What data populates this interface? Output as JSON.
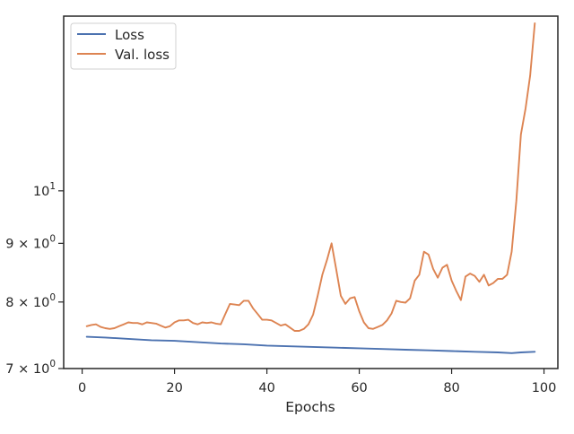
{
  "chart_data": {
    "type": "line",
    "title": "",
    "xlabel": "Epochs",
    "ylabel": "",
    "xlim": [
      -4,
      103
    ],
    "ylim": [
      7,
      14.2
    ],
    "y_scale": "log",
    "grid": false,
    "legend": "top-left",
    "x_ticks": [
      0,
      20,
      40,
      60,
      80,
      100
    ],
    "x_tick_labels": [
      "0",
      "20",
      "40",
      "60",
      "80",
      "100"
    ],
    "y_ticks": [
      {
        "value": 7,
        "base": "7 × 10",
        "exp": "0"
      },
      {
        "value": 8,
        "base": "8 × 10",
        "exp": "0"
      },
      {
        "value": 9,
        "base": "9 × 10",
        "exp": "0"
      },
      {
        "value": 10,
        "base": "10",
        "exp": "1"
      }
    ],
    "series": [
      {
        "name": "Loss",
        "color": "#4c72b0",
        "x": [
          1,
          5,
          10,
          15,
          20,
          25,
          30,
          35,
          40,
          45,
          50,
          55,
          60,
          65,
          70,
          75,
          80,
          85,
          90,
          93,
          95,
          98
        ],
        "y": [
          7.46,
          7.45,
          7.43,
          7.41,
          7.4,
          7.38,
          7.36,
          7.35,
          7.33,
          7.32,
          7.31,
          7.3,
          7.29,
          7.28,
          7.27,
          7.26,
          7.25,
          7.24,
          7.23,
          7.22,
          7.23,
          7.24
        ]
      },
      {
        "name": "Val. loss",
        "color": "#dd8452",
        "x": [
          1,
          2,
          3,
          4,
          5,
          6,
          7,
          8,
          9,
          10,
          11,
          12,
          13,
          14,
          15,
          16,
          17,
          18,
          19,
          20,
          21,
          22,
          23,
          24,
          25,
          26,
          27,
          28,
          29,
          30,
          31,
          32,
          33,
          34,
          35,
          36,
          37,
          38,
          39,
          40,
          41,
          42,
          43,
          44,
          45,
          46,
          47,
          48,
          49,
          50,
          51,
          52,
          53,
          54,
          55,
          56,
          57,
          58,
          59,
          60,
          61,
          62,
          63,
          64,
          65,
          66,
          67,
          68,
          69,
          70,
          71,
          72,
          73,
          74,
          75,
          76,
          77,
          78,
          79,
          80,
          81,
          82,
          83,
          84,
          85,
          86,
          87,
          88,
          89,
          90,
          91,
          92,
          93,
          94,
          95,
          96,
          97,
          98
        ],
        "y": [
          7.62,
          7.64,
          7.65,
          7.61,
          7.59,
          7.58,
          7.59,
          7.62,
          7.65,
          7.68,
          7.67,
          7.67,
          7.65,
          7.68,
          7.67,
          7.66,
          7.63,
          7.6,
          7.62,
          7.68,
          7.71,
          7.71,
          7.72,
          7.67,
          7.65,
          7.68,
          7.67,
          7.68,
          7.66,
          7.65,
          7.81,
          7.97,
          7.96,
          7.95,
          8.02,
          8.02,
          7.9,
          7.81,
          7.72,
          7.72,
          7.71,
          7.67,
          7.63,
          7.65,
          7.6,
          7.55,
          7.55,
          7.58,
          7.65,
          7.8,
          8.1,
          8.45,
          8.7,
          9.0,
          8.55,
          8.1,
          7.97,
          8.06,
          8.08,
          7.85,
          7.68,
          7.59,
          7.58,
          7.61,
          7.64,
          7.71,
          7.82,
          8.02,
          8.0,
          7.99,
          8.06,
          8.35,
          8.45,
          8.85,
          8.8,
          8.55,
          8.4,
          8.57,
          8.62,
          8.35,
          8.18,
          8.03,
          8.42,
          8.47,
          8.43,
          8.33,
          8.45,
          8.27,
          8.31,
          8.38,
          8.38,
          8.45,
          8.85,
          9.8,
          11.2,
          11.8,
          12.6,
          14.0
        ]
      }
    ]
  }
}
